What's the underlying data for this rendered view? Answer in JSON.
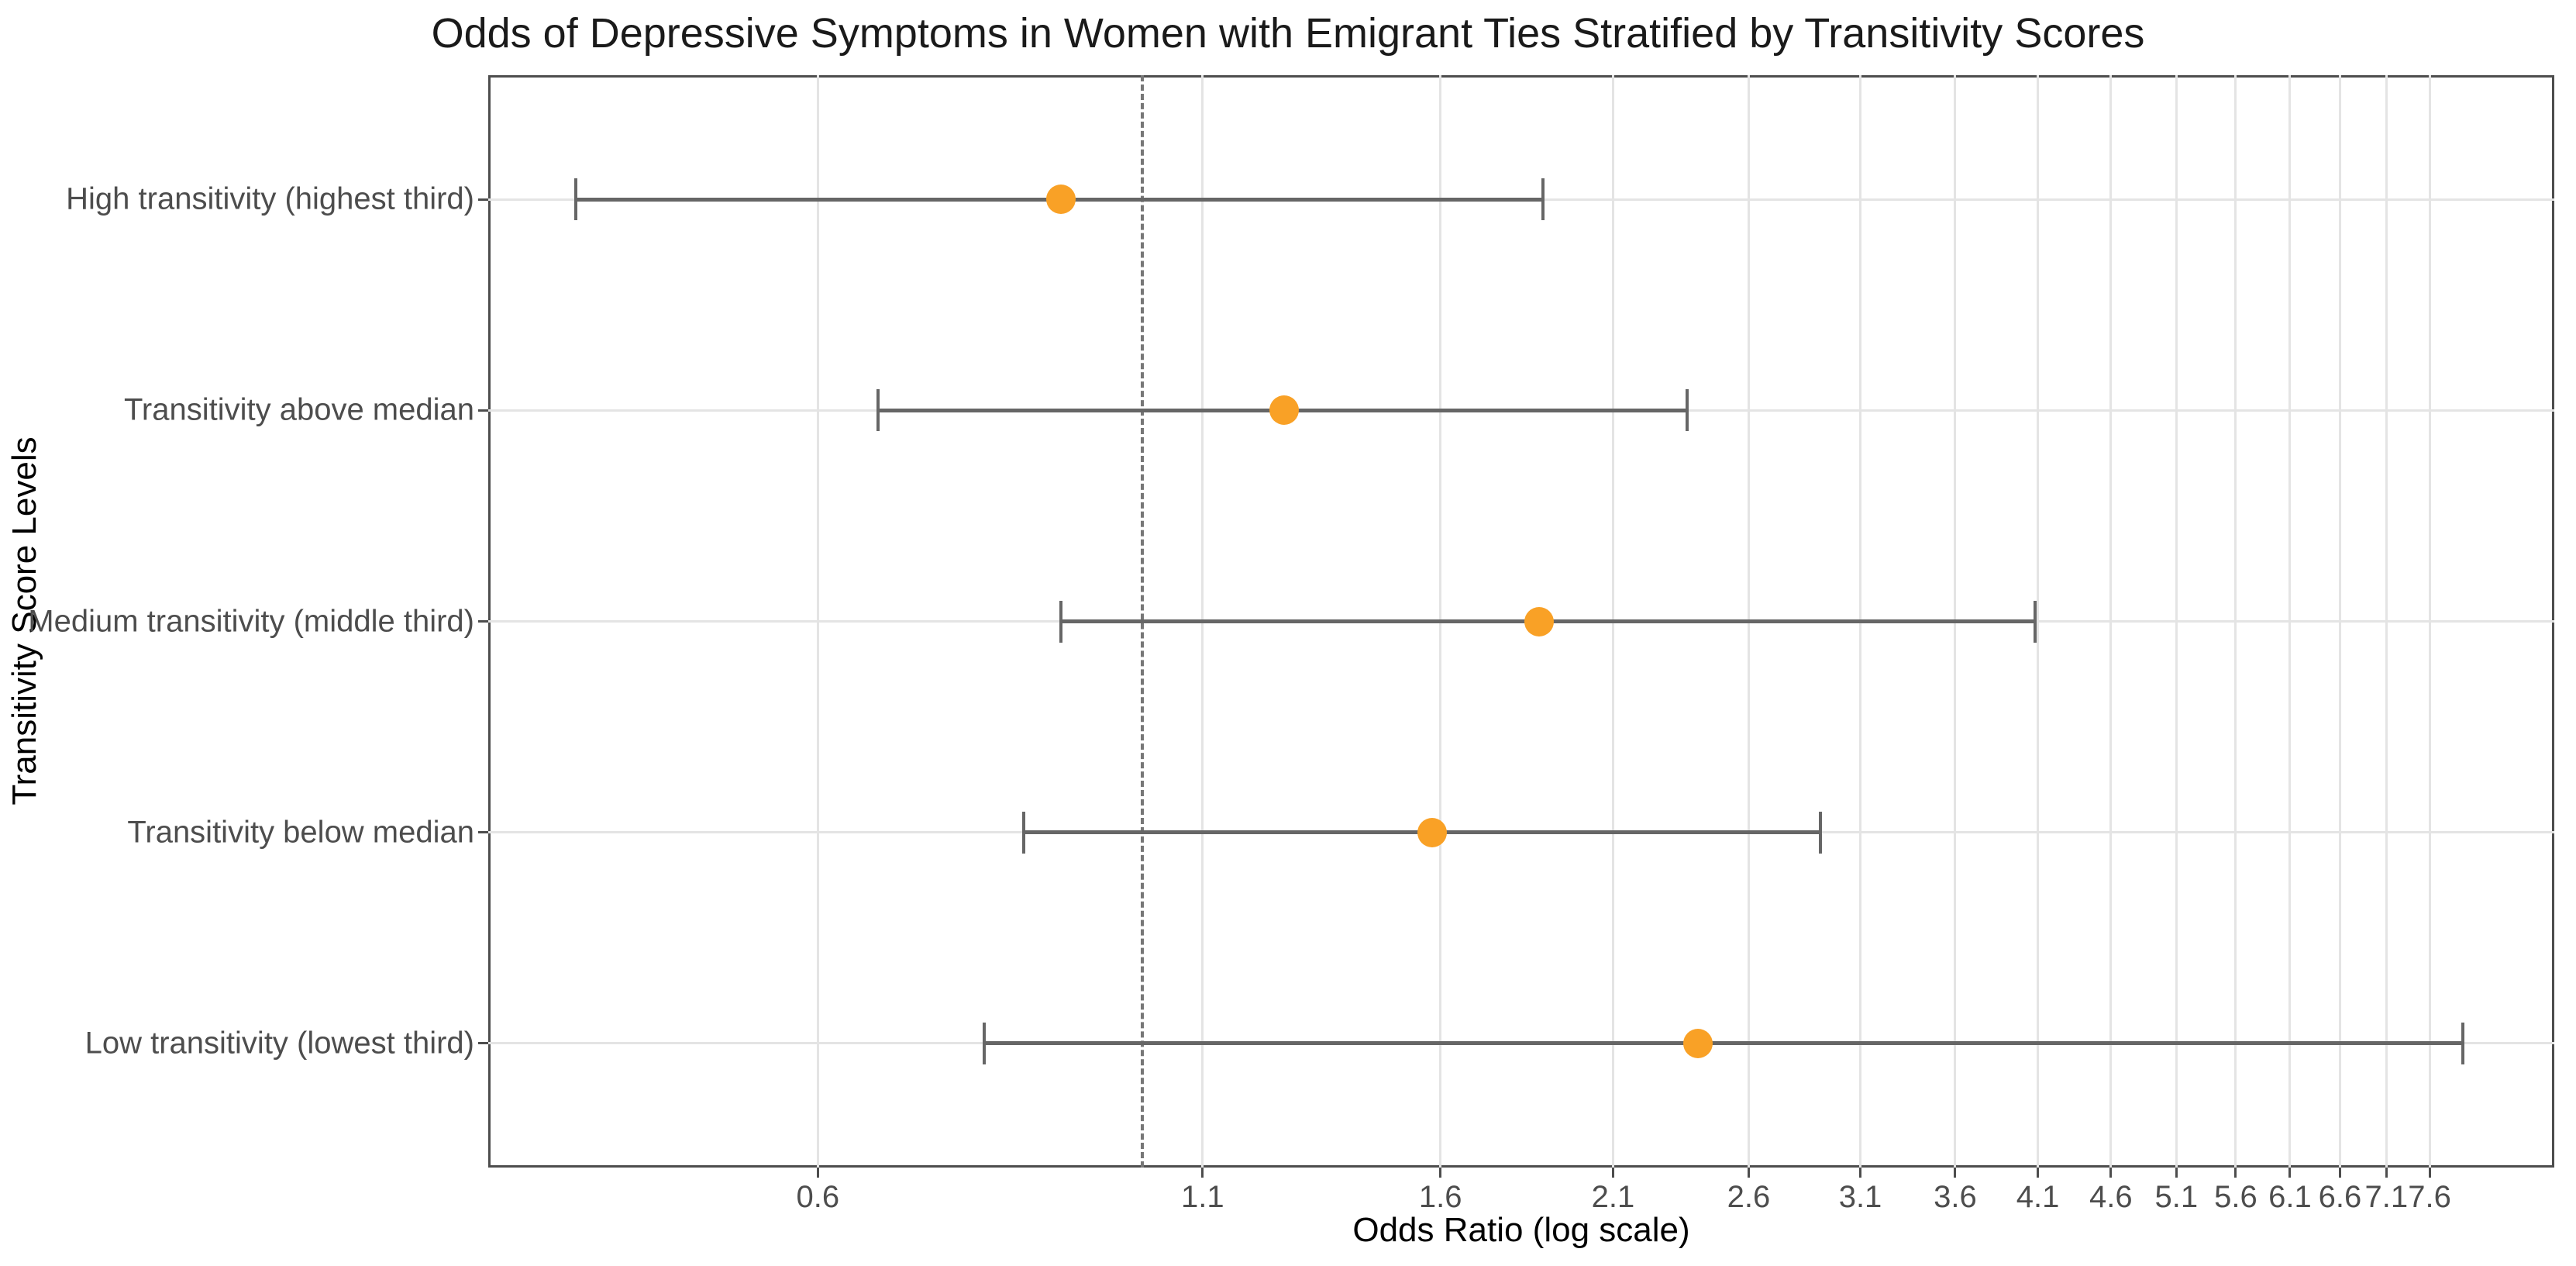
{
  "chart_data": {
    "type": "scatter",
    "subtype": "forest-plot-with-error-bars",
    "title": "Odds of Depressive Symptoms in Women with Emigrant Ties Stratified by Transitivity Scores",
    "xlabel": "Odds Ratio (log scale)",
    "ylabel": "Transitivity Score Levels",
    "x_scale": "log",
    "xlim": [
      0.357,
      9.25
    ],
    "x_ticks": [
      0.6,
      1.1,
      1.6,
      2.1,
      2.6,
      3.1,
      3.6,
      4.1,
      4.6,
      5.1,
      5.6,
      6.1,
      6.6,
      7.1,
      7.6
    ],
    "reference_line": 1.0,
    "reference_line_style": "dashed",
    "grid": true,
    "legend": "none",
    "rows": [
      {
        "label": "High transitivity (highest third)",
        "or": 0.88,
        "ci_low": 0.41,
        "ci_high": 1.88
      },
      {
        "label": "Transitivity above median",
        "or": 1.25,
        "ci_low": 0.66,
        "ci_high": 2.36
      },
      {
        "label": "Medium transitivity (middle third)",
        "or": 1.87,
        "ci_low": 0.88,
        "ci_high": 4.08
      },
      {
        "label": "Transitivity below median",
        "or": 1.58,
        "ci_low": 0.83,
        "ci_high": 2.91
      },
      {
        "label": "Low transitivity (lowest third)",
        "or": 2.4,
        "ci_low": 0.78,
        "ci_high": 8.01
      }
    ],
    "colors": {
      "point": "#F9A126",
      "error_bar": "#666666",
      "grid": "#E4E4E4",
      "panel_border": "#4D4D4D",
      "reference_line": "#777777",
      "tick_mark": "#4D4D4D",
      "axis_text": "#4D4D4D",
      "title_text": "#1A1A1A",
      "background": "#FFFFFF"
    }
  }
}
